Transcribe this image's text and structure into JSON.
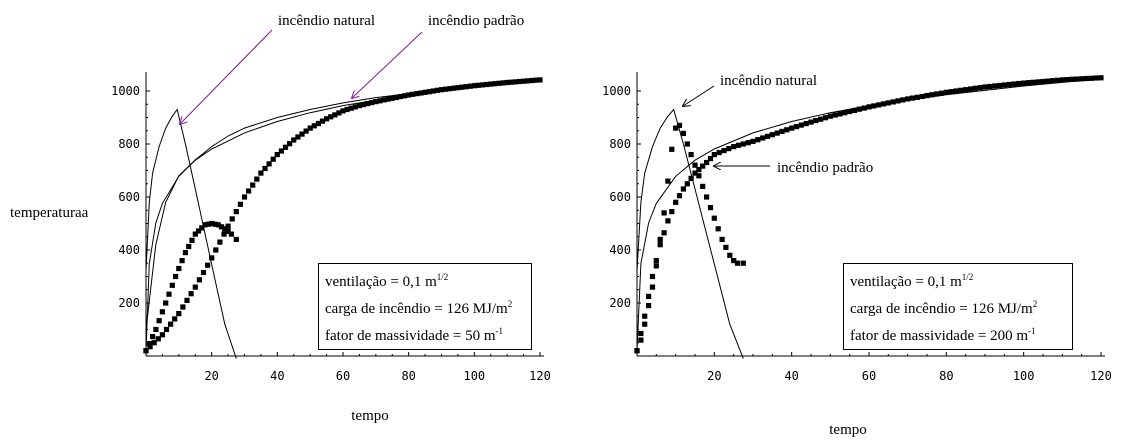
{
  "chart_data": [
    {
      "type": "line",
      "ylabel": "temperaturaa",
      "xlabel": "tempo",
      "xlim": [
        0,
        120
      ],
      "ylim": [
        0,
        1050
      ],
      "x_ticks": [
        "20",
        "40",
        "60",
        "80",
        "100",
        "120"
      ],
      "y_ticks": [
        "200",
        "400",
        "600",
        "800",
        "1000"
      ],
      "annotations": [
        "incêndio natural",
        "incêndio padrão"
      ],
      "legend": {
        "ventilation_text": "ventilação = 0,1 m",
        "ventilation_sup": "1/2",
        "load_text": "carga de incêndio = 126 MJ/m",
        "load_sup": "2",
        "massivity_text": "fator de massividade = 50 m",
        "massivity_sup": "-1"
      },
      "series": [
        {
          "style": "thin-line",
          "x": [
            0,
            1,
            2,
            4,
            6,
            8,
            9.5,
            12,
            15,
            18,
            21,
            24,
            27.5
          ],
          "y": [
            320,
            580,
            690,
            790,
            860,
            905,
            930,
            800,
            630,
            460,
            290,
            120,
            -10
          ]
        },
        {
          "style": "thin-line",
          "x": [
            0,
            1,
            3,
            5,
            10,
            15,
            20,
            30,
            40,
            50,
            60,
            80,
            100,
            120
          ],
          "y": [
            20,
            349,
            502,
            576,
            678,
            739,
            781,
            842,
            885,
            918,
            945,
            986,
            1019,
            1046
          ]
        },
        {
          "style": "thin-line",
          "x": [
            0,
            3,
            6,
            10,
            15,
            20,
            25,
            30,
            40,
            50,
            60,
            70,
            80
          ],
          "y": [
            100,
            420,
            580,
            680,
            740,
            790,
            830,
            860,
            900,
            930,
            955,
            975,
            990
          ]
        },
        {
          "style": "thick-dots",
          "x": [
            0,
            3,
            6,
            9,
            12,
            15,
            18,
            20,
            22,
            24,
            26,
            27.5
          ],
          "y": [
            20,
            100,
            200,
            300,
            390,
            460,
            495,
            500,
            495,
            480,
            460,
            440
          ]
        },
        {
          "style": "thick-dots",
          "x": [
            0,
            5,
            10,
            15,
            20,
            25,
            30,
            35,
            40,
            45,
            50,
            55,
            60,
            65,
            70,
            80,
            90,
            100,
            110,
            120
          ],
          "y": [
            20,
            80,
            160,
            260,
            370,
            490,
            600,
            690,
            760,
            815,
            860,
            895,
            925,
            945,
            960,
            985,
            1005,
            1020,
            1032,
            1042
          ]
        }
      ]
    },
    {
      "type": "line",
      "ylabel": "",
      "xlabel": "tempo",
      "xlim": [
        0,
        120
      ],
      "ylim": [
        0,
        1050
      ],
      "x_ticks": [
        "20",
        "40",
        "60",
        "80",
        "100",
        "120"
      ],
      "y_ticks": [
        "200",
        "400",
        "600",
        "800",
        "1000"
      ],
      "annotations": [
        "incêndio natural",
        "incêndio padrão"
      ],
      "legend": {
        "ventilation_text": "ventilação = 0,1 m",
        "ventilation_sup": "1/2",
        "load_text": "carga de incêndio = 126 MJ/m",
        "load_sup": "2",
        "massivity_text": "fator de massividade = 200 m",
        "massivity_sup": "-1"
      },
      "series": [
        {
          "style": "thin-line",
          "x": [
            0,
            1,
            2,
            4,
            6,
            8,
            9.5,
            12,
            15,
            18,
            21,
            24,
            27.5
          ],
          "y": [
            320,
            580,
            690,
            790,
            860,
            905,
            930,
            800,
            630,
            460,
            290,
            120,
            -10
          ]
        },
        {
          "style": "thin-line",
          "x": [
            0,
            1,
            3,
            5,
            10,
            15,
            20,
            30,
            40,
            50,
            60,
            80,
            100,
            120
          ],
          "y": [
            20,
            349,
            502,
            576,
            678,
            739,
            781,
            842,
            885,
            918,
            945,
            986,
            1019,
            1046
          ]
        },
        {
          "style": "thick-dots",
          "x": [
            0,
            1,
            2,
            3,
            4,
            5,
            6,
            7,
            8,
            9,
            10,
            11,
            12,
            13,
            14,
            15,
            16,
            17,
            18,
            19,
            20,
            21,
            22,
            23,
            24,
            25,
            26,
            27.5
          ],
          "y": [
            20,
            60,
            120,
            190,
            260,
            340,
            440,
            540,
            660,
            780,
            860,
            870,
            840,
            800,
            760,
            720,
            680,
            640,
            600,
            560,
            520,
            480,
            440,
            410,
            380,
            360,
            350,
            350
          ]
        },
        {
          "style": "thick-dots",
          "x": [
            0,
            2,
            4,
            6,
            8,
            10,
            12,
            15,
            18,
            20,
            25,
            30,
            40,
            50,
            60,
            70,
            80,
            90,
            100,
            110,
            120
          ],
          "y": [
            20,
            150,
            300,
            420,
            510,
            580,
            630,
            690,
            730,
            760,
            790,
            810,
            860,
            905,
            940,
            970,
            995,
            1015,
            1030,
            1042,
            1050
          ]
        }
      ]
    }
  ]
}
